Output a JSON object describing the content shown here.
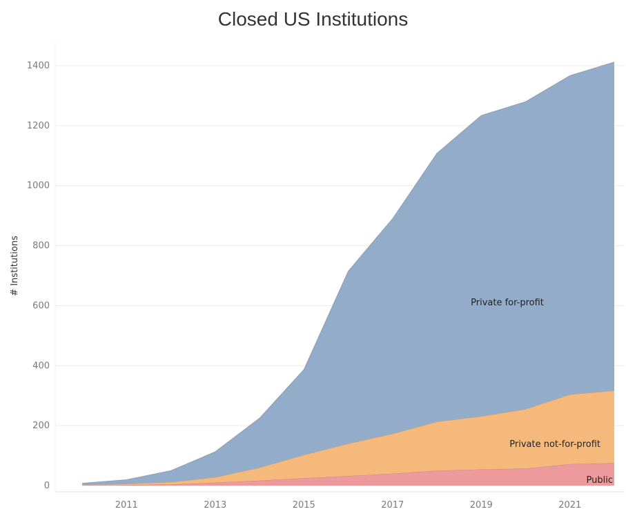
{
  "chart_data": {
    "type": "area",
    "stacked": true,
    "title": "Closed US Institutions",
    "xlabel": "",
    "ylabel": "# Institutions",
    "x": [
      2010,
      2011,
      2012,
      2013,
      2014,
      2015,
      2016,
      2017,
      2018,
      2019,
      2020,
      2021,
      2022
    ],
    "xticks": [
      2011,
      2013,
      2015,
      2017,
      2019,
      2021
    ],
    "yticks": [
      0,
      200,
      400,
      600,
      800,
      1000,
      1200,
      1400
    ],
    "ylim": [
      0,
      1400
    ],
    "series": [
      {
        "name": "Public",
        "color": "#ee9a9c",
        "values": [
          1,
          2,
          4,
          10,
          17,
          25,
          32,
          40,
          50,
          54,
          57,
          72,
          75
        ]
      },
      {
        "name": "Private not-for-profit",
        "color": "#f5b97c",
        "values": [
          2,
          4,
          8,
          18,
          43,
          77,
          108,
          133,
          163,
          177,
          198,
          232,
          242
        ]
      },
      {
        "name": "Private for-profit",
        "color": "#93acca",
        "values": [
          5,
          14,
          38,
          85,
          165,
          285,
          575,
          717,
          895,
          1003,
          1025,
          1063,
          1095
        ]
      }
    ]
  }
}
